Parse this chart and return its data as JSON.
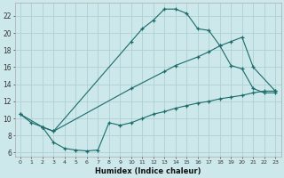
{
  "xlabel": "Humidex (Indice chaleur)",
  "bg_color": "#cce8ea",
  "grid_color": "#b0d0d4",
  "line_color": "#1a6b6b",
  "line1": {
    "x": [
      0,
      1,
      2,
      3,
      10,
      11,
      12,
      13,
      14,
      15,
      16,
      17,
      18,
      19,
      20,
      21,
      22,
      23
    ],
    "y": [
      10.5,
      9.5,
      9.0,
      8.5,
      19.0,
      20.5,
      21.5,
      22.8,
      22.8,
      22.3,
      20.5,
      20.3,
      18.5,
      16.2,
      15.8,
      13.5,
      13.0,
      13.0
    ]
  },
  "line2": {
    "x": [
      0,
      2,
      3,
      10,
      13,
      14,
      16,
      17,
      18,
      19,
      20,
      21,
      23
    ],
    "y": [
      10.5,
      9.0,
      8.5,
      13.5,
      15.5,
      16.2,
      17.2,
      17.8,
      18.5,
      19.0,
      19.5,
      16.0,
      13.2
    ]
  },
  "line3": {
    "x": [
      2,
      3,
      4,
      5,
      6,
      7,
      8,
      9,
      10,
      11,
      12,
      13,
      14,
      15,
      16,
      17,
      18,
      19,
      20,
      21,
      22,
      23
    ],
    "y": [
      9.0,
      7.2,
      6.5,
      6.3,
      6.2,
      6.3,
      9.5,
      9.2,
      9.5,
      10.0,
      10.5,
      10.8,
      11.2,
      11.5,
      11.8,
      12.0,
      12.3,
      12.5,
      12.7,
      13.0,
      13.2,
      13.2
    ]
  },
  "xlim": [
    -0.5,
    23.5
  ],
  "ylim": [
    5.5,
    23.5
  ],
  "yticks": [
    6,
    8,
    10,
    12,
    14,
    16,
    18,
    20,
    22
  ],
  "xticks": [
    0,
    1,
    2,
    3,
    4,
    5,
    6,
    7,
    8,
    9,
    10,
    11,
    12,
    13,
    14,
    15,
    16,
    17,
    18,
    19,
    20,
    21,
    22,
    23
  ]
}
